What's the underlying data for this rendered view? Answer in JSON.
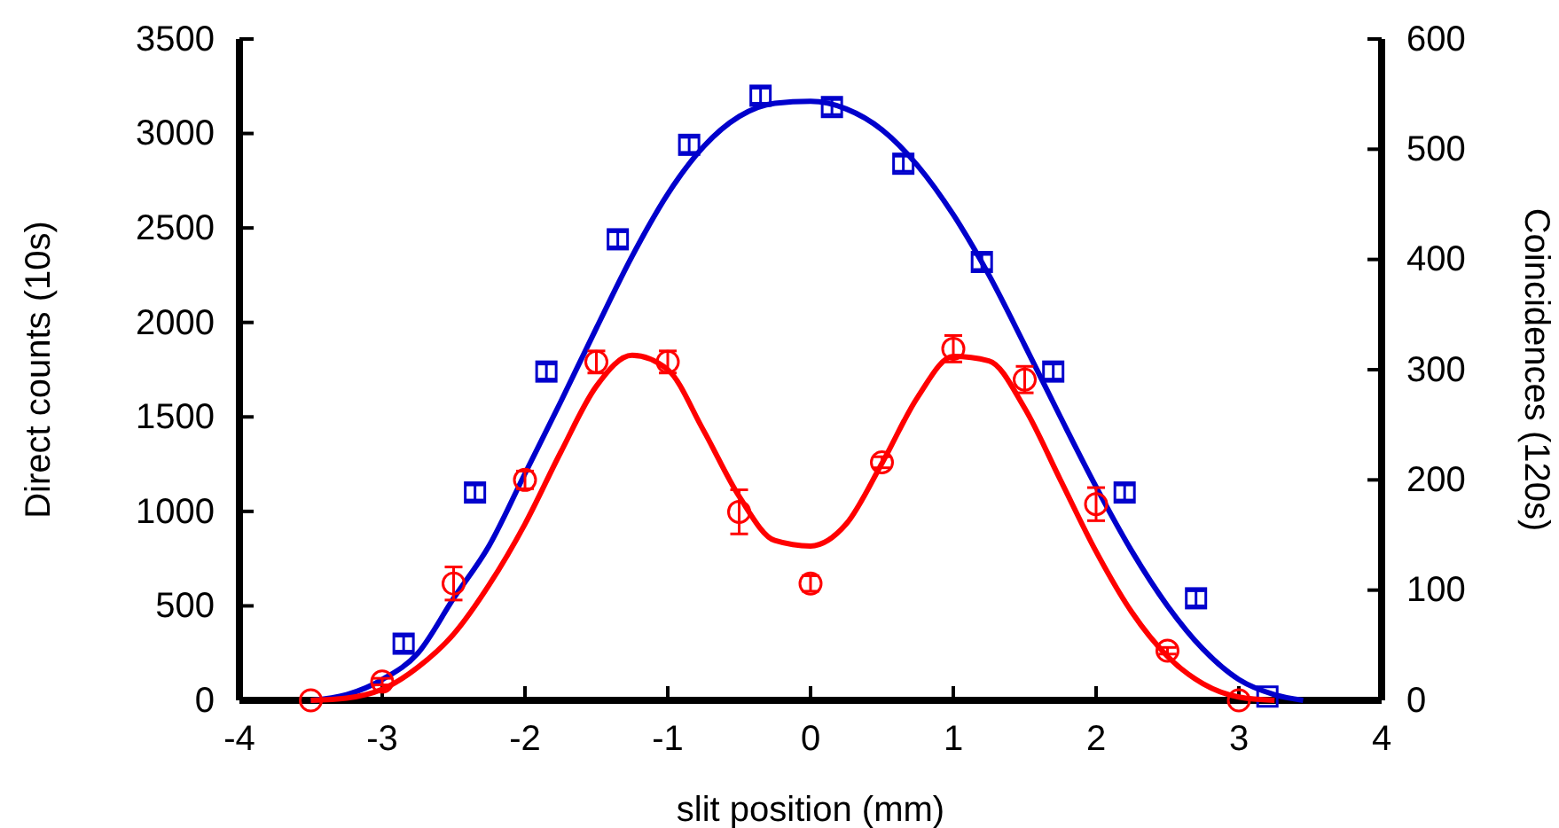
{
  "chart_data": {
    "type": "scatter",
    "xlabel": "slit position (mm)",
    "ylabel": "Direct counts (10s)",
    "y2label": "Coincidences (120s)",
    "xlim": [
      -4,
      4
    ],
    "xticks": [
      -4,
      -3,
      -2,
      -1,
      0,
      1,
      2,
      3,
      4
    ],
    "ylim": [
      0,
      3500
    ],
    "yticks": [
      0,
      500,
      1000,
      1500,
      2000,
      2500,
      3000,
      3500
    ],
    "y2lim": [
      0,
      600
    ],
    "y2ticks": [
      0,
      100,
      200,
      300,
      400,
      500,
      600
    ],
    "grid": false,
    "series": [
      {
        "marker": "square",
        "color": "#0000cc",
        "x": [
          -2.85,
          -2.35,
          -1.85,
          -1.35,
          -0.85,
          -0.35,
          0.15,
          0.65,
          1.2,
          1.7,
          2.2,
          2.7,
          3.2
        ],
        "values": [
          300,
          1100,
          1740,
          2440,
          2940,
          3200,
          3140,
          2840,
          2320,
          1740,
          1100,
          540,
          20
        ],
        "errors": [
          40,
          40,
          40,
          40,
          40,
          40,
          40,
          40,
          40,
          40,
          40,
          40,
          null
        ]
      },
      {
        "type": "line",
        "marker": "none",
        "line_style": "solid",
        "color": "#0000cc",
        "x": [
          -3.5,
          -3.25,
          -3,
          -2.75,
          -2.5,
          -2.25,
          -2,
          -1.75,
          -1.5,
          -1.25,
          -1,
          -0.75,
          -0.5,
          -0.25,
          0,
          0.25,
          0.5,
          0.75,
          1,
          1.25,
          1.5,
          1.75,
          2,
          2.25,
          2.5,
          2.75,
          3,
          3.25,
          3.45
        ],
        "values": [
          0,
          30,
          110,
          250,
          540,
          820,
          1200,
          1580,
          1970,
          2350,
          2680,
          2930,
          3090,
          3160,
          3170,
          3130,
          3020,
          2830,
          2570,
          2250,
          1880,
          1500,
          1130,
          790,
          500,
          270,
          110,
          30,
          0
        ]
      },
      {
        "marker": "circle",
        "axis": "y2",
        "color": "#ff0000",
        "x": [
          -3.5,
          -3,
          -2.5,
          -2,
          -1.5,
          -1,
          -0.5,
          0,
          0.5,
          1,
          1.5,
          2,
          2.5,
          3
        ],
        "values": [
          0,
          17,
          106,
          200,
          307,
          307,
          171,
          106,
          216,
          319,
          291,
          178,
          45,
          0
        ],
        "errors": [
          null,
          3,
          15,
          8,
          10,
          10,
          20,
          7,
          5,
          12,
          12,
          15,
          3,
          null
        ]
      },
      {
        "type": "line",
        "marker": "none",
        "line_style": "solid",
        "axis": "y2",
        "color": "#ff0000",
        "x": [
          -3.5,
          -3.25,
          -3,
          -2.75,
          -2.5,
          -2.25,
          -2,
          -1.75,
          -1.5,
          -1.25,
          -1,
          -0.75,
          -0.5,
          -0.25,
          0,
          0.25,
          0.5,
          0.75,
          1,
          1.25,
          1.5,
          1.75,
          2,
          2.25,
          2.5,
          2.75,
          3,
          3.25
        ],
        "values": [
          0,
          2,
          10,
          30,
          60,
          105,
          160,
          225,
          285,
          313,
          300,
          245,
          185,
          145,
          140,
          160,
          215,
          275,
          312,
          308,
          265,
          200,
          135,
          80,
          40,
          15,
          3,
          0
        ]
      }
    ]
  }
}
